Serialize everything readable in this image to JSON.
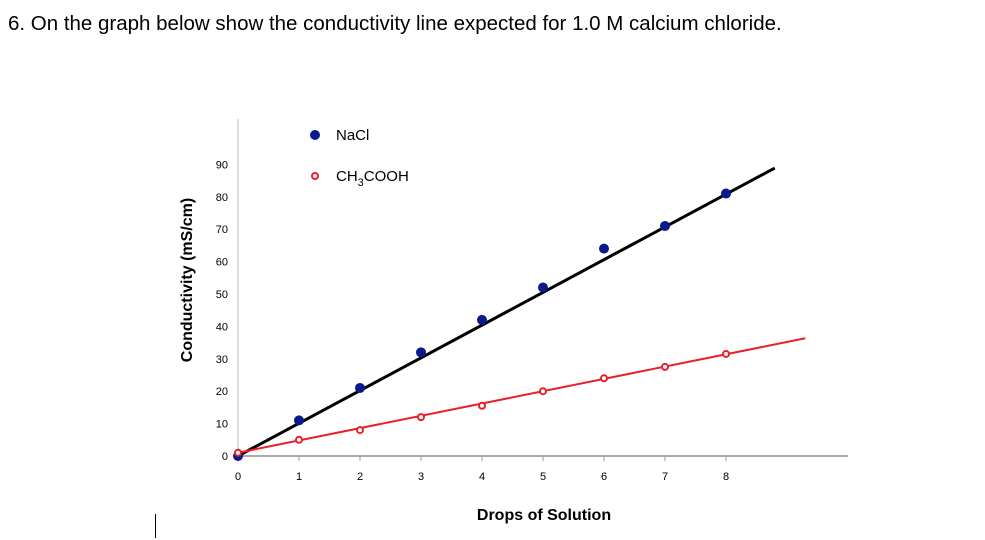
{
  "question": "6. On the graph below show the conductivity line expected for 1.0 M calcium chloride.",
  "chart_data": {
    "type": "scatter",
    "xlabel": "Drops of Solution",
    "ylabel": "Conductivity (mS/cm)",
    "xticks": [
      0,
      1,
      2,
      3,
      4,
      5,
      6,
      7,
      8
    ],
    "yticks": [
      0,
      10,
      20,
      30,
      40,
      50,
      60,
      70,
      80,
      90
    ],
    "xlim": [
      0,
      10
    ],
    "ylim": [
      0,
      104
    ],
    "grid": false,
    "legend_position": "top-left",
    "series": [
      {
        "name": "NaCl",
        "color": "#0a1a8c",
        "marker": "filled-circle",
        "x": [
          0,
          1,
          2,
          3,
          4,
          5,
          6,
          7,
          8
        ],
        "y": [
          0,
          11,
          21,
          32,
          42,
          52,
          64,
          71,
          81
        ],
        "trendline": {
          "color": "#000000",
          "slope": 10.1,
          "intercept": 0,
          "x_end": 8.8
        }
      },
      {
        "name": "CH3COOH",
        "color": "#e8202a",
        "marker": "small-circle",
        "x": [
          0,
          1,
          2,
          3,
          4,
          5,
          6,
          7,
          8
        ],
        "y": [
          1,
          5,
          8,
          12,
          15.5,
          20,
          24,
          27.5,
          31.5
        ],
        "trendline": {
          "color": "#e8202a",
          "slope": 3.8,
          "intercept": 1,
          "x_end": 9.3
        }
      }
    ]
  }
}
